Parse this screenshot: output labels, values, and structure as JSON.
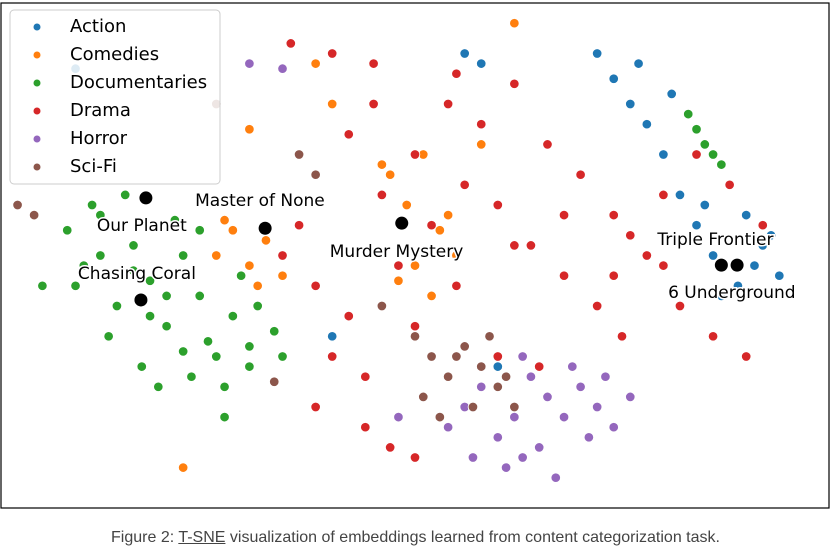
{
  "chart_data": {
    "type": "scatter",
    "xlim": [
      0,
      100
    ],
    "ylim": [
      0,
      100
    ],
    "legend": "upper-left",
    "series": [
      {
        "name": "Action",
        "color": "#1f77b4",
        "x": [
          74,
          76,
          78,
          80,
          82,
          84,
          86,
          88,
          90,
          92,
          94,
          77,
          81,
          85,
          89,
          93,
          72,
          87,
          91,
          56,
          58,
          40,
          9,
          60
        ],
        "values": [
          85,
          80,
          76,
          70,
          62,
          56,
          50,
          64,
          58,
          52,
          46,
          88,
          82,
          60,
          44,
          54,
          90,
          42,
          48,
          90,
          88,
          34,
          87,
          28
        ]
      },
      {
        "name": "Comedies",
        "color": "#ff7f0e",
        "x": [
          26,
          28,
          30,
          32,
          34,
          27,
          31,
          47,
          49,
          51,
          53,
          55,
          48,
          52,
          56,
          50,
          54,
          46,
          58,
          22,
          40,
          30,
          38,
          62
        ],
        "values": [
          50,
          55,
          48,
          53,
          46,
          57,
          44,
          66,
          60,
          70,
          55,
          50,
          45,
          42,
          64,
          48,
          58,
          68,
          72,
          8,
          80,
          75,
          88,
          96
        ]
      },
      {
        "name": "Documentaries",
        "color": "#2ca02c",
        "x": [
          8,
          10,
          12,
          14,
          16,
          18,
          20,
          22,
          24,
          26,
          28,
          30,
          9,
          13,
          17,
          21,
          25,
          29,
          33,
          11,
          15,
          19,
          23,
          27,
          31,
          12,
          18,
          24,
          30,
          20,
          16,
          22,
          83,
          85,
          87,
          84,
          86,
          5,
          34,
          27
        ],
        "values": [
          55,
          48,
          58,
          40,
          52,
          45,
          36,
          50,
          42,
          30,
          38,
          28,
          44,
          34,
          28,
          57,
          33,
          46,
          35,
          60,
          62,
          24,
          26,
          24,
          40,
          50,
          38,
          55,
          32,
          42,
          47,
          31,
          78,
          72,
          68,
          75,
          70,
          44,
          30,
          18
        ]
      },
      {
        "name": "Drama",
        "color": "#d62728",
        "x": [
          34,
          38,
          42,
          46,
          50,
          54,
          58,
          62,
          66,
          70,
          74,
          78,
          82,
          86,
          90,
          36,
          40,
          44,
          48,
          52,
          56,
          60,
          64,
          68,
          72,
          76,
          80,
          84,
          88,
          92,
          45,
          50,
          55,
          60,
          65,
          70,
          75,
          35,
          40,
          45,
          55,
          62,
          68,
          74,
          80,
          44,
          47,
          50,
          38,
          42
        ],
        "values": [
          50,
          44,
          38,
          62,
          70,
          80,
          76,
          84,
          72,
          66,
          58,
          50,
          40,
          34,
          30,
          56,
          30,
          26,
          48,
          56,
          64,
          60,
          52,
          46,
          40,
          54,
          62,
          70,
          64,
          56,
          80,
          36,
          44,
          30,
          28,
          24,
          34,
          92,
          90,
          88,
          86,
          52,
          58,
          46,
          48,
          16,
          12,
          10,
          20,
          74
        ]
      },
      {
        "name": "Horror",
        "color": "#9467bd",
        "x": [
          54,
          56,
          58,
          60,
          62,
          64,
          66,
          68,
          70,
          72,
          74,
          76,
          57,
          61,
          65,
          69,
          73,
          63,
          67,
          71,
          48,
          30,
          34,
          63
        ],
        "values": [
          16,
          20,
          24,
          14,
          18,
          26,
          22,
          18,
          24,
          20,
          16,
          22,
          10,
          8,
          12,
          28,
          26,
          30,
          6,
          14,
          18,
          88,
          87,
          10
        ]
      },
      {
        "name": "Sci-Fi",
        "color": "#8c564b",
        "x": [
          50,
          52,
          54,
          56,
          58,
          60,
          62,
          51,
          55,
          59,
          61,
          53,
          57,
          36,
          38,
          4,
          2,
          46,
          33,
          26
        ],
        "values": [
          34,
          30,
          26,
          32,
          28,
          24,
          20,
          22,
          30,
          34,
          26,
          18,
          20,
          70,
          66,
          58,
          60,
          40,
          25,
          80
        ]
      }
    ],
    "annotations": [
      {
        "text": "Our Planet",
        "x": 17.5,
        "y": 61.4
      },
      {
        "text": "Master of None",
        "x": 31.9,
        "y": 55.4
      },
      {
        "text": "Murder Mystery",
        "x": 48.4,
        "y": 56.4
      },
      {
        "text": "Chasing Coral",
        "x": 16.9,
        "y": 41.2
      },
      {
        "text": "Triple Frontier",
        "x": 87,
        "y": 48.1
      },
      {
        "text": "6 Underground",
        "x": 88.9,
        "y": 48.1
      }
    ]
  },
  "caption": {
    "prefix": "Figure 2: ",
    "link": "T-SNE",
    "suffix": " visualization of embeddings learned from content categorization task."
  }
}
